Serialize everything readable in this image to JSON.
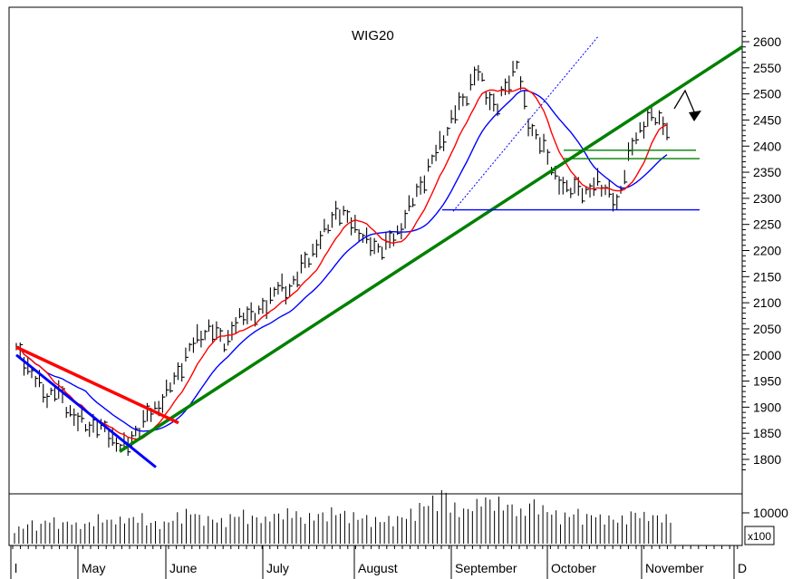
{
  "chart_data": [
    {
      "type": "line",
      "title": "WIG20",
      "ylim": [
        1760,
        2620
      ],
      "y_ticks": [
        1800,
        1850,
        1900,
        1950,
        2000,
        2050,
        2100,
        2150,
        2200,
        2250,
        2300,
        2350,
        2400,
        2450,
        2500,
        2550,
        2600
      ],
      "x_labels": [
        "l",
        "May",
        "June",
        "July",
        "August",
        "September",
        "October",
        "November",
        "D"
      ],
      "grid": false,
      "colors": {
        "price": "#000000",
        "ma_short": "#ff0000",
        "ma_long": "#0000ff",
        "trend_green": "#008000",
        "trend_red": "#ff0000",
        "trend_blue": "#0000ff"
      },
      "price_points": [
        2010,
        1985,
        1950,
        1920,
        1935,
        1900,
        1880,
        1860,
        1870,
        1850,
        1835,
        1820,
        1855,
        1880,
        1900,
        1925,
        1960,
        2000,
        2030,
        2050,
        2040,
        2025,
        2060,
        2085,
        2070,
        2100,
        2130,
        2120,
        2150,
        2180,
        2210,
        2240,
        2280,
        2260,
        2245,
        2215,
        2205,
        2210,
        2230,
        2270,
        2310,
        2350,
        2390,
        2430,
        2470,
        2500,
        2545,
        2500,
        2470,
        2520,
        2560,
        2450,
        2420,
        2380,
        2340,
        2310,
        2330,
        2300,
        2340,
        2310,
        2290,
        2370,
        2420,
        2455,
        2450,
        2440
      ]
    },
    {
      "type": "bar",
      "y_ticks": [
        10000
      ],
      "multiplier_label": "x100",
      "values": [
        30,
        40,
        35,
        45,
        38,
        42,
        36,
        40,
        50,
        44,
        46,
        48,
        52,
        40,
        38,
        45,
        55,
        60,
        50,
        48,
        44,
        52,
        58,
        50,
        46,
        54,
        56,
        60,
        48,
        52,
        56,
        62,
        58,
        54,
        50,
        46,
        44,
        48,
        52,
        60,
        72,
        82,
        96,
        70,
        64,
        76,
        86,
        80,
        74,
        70,
        60,
        78,
        66,
        58,
        54,
        60,
        52,
        56,
        50,
        46,
        48,
        58,
        54,
        52,
        50,
        48
      ]
    }
  ]
}
